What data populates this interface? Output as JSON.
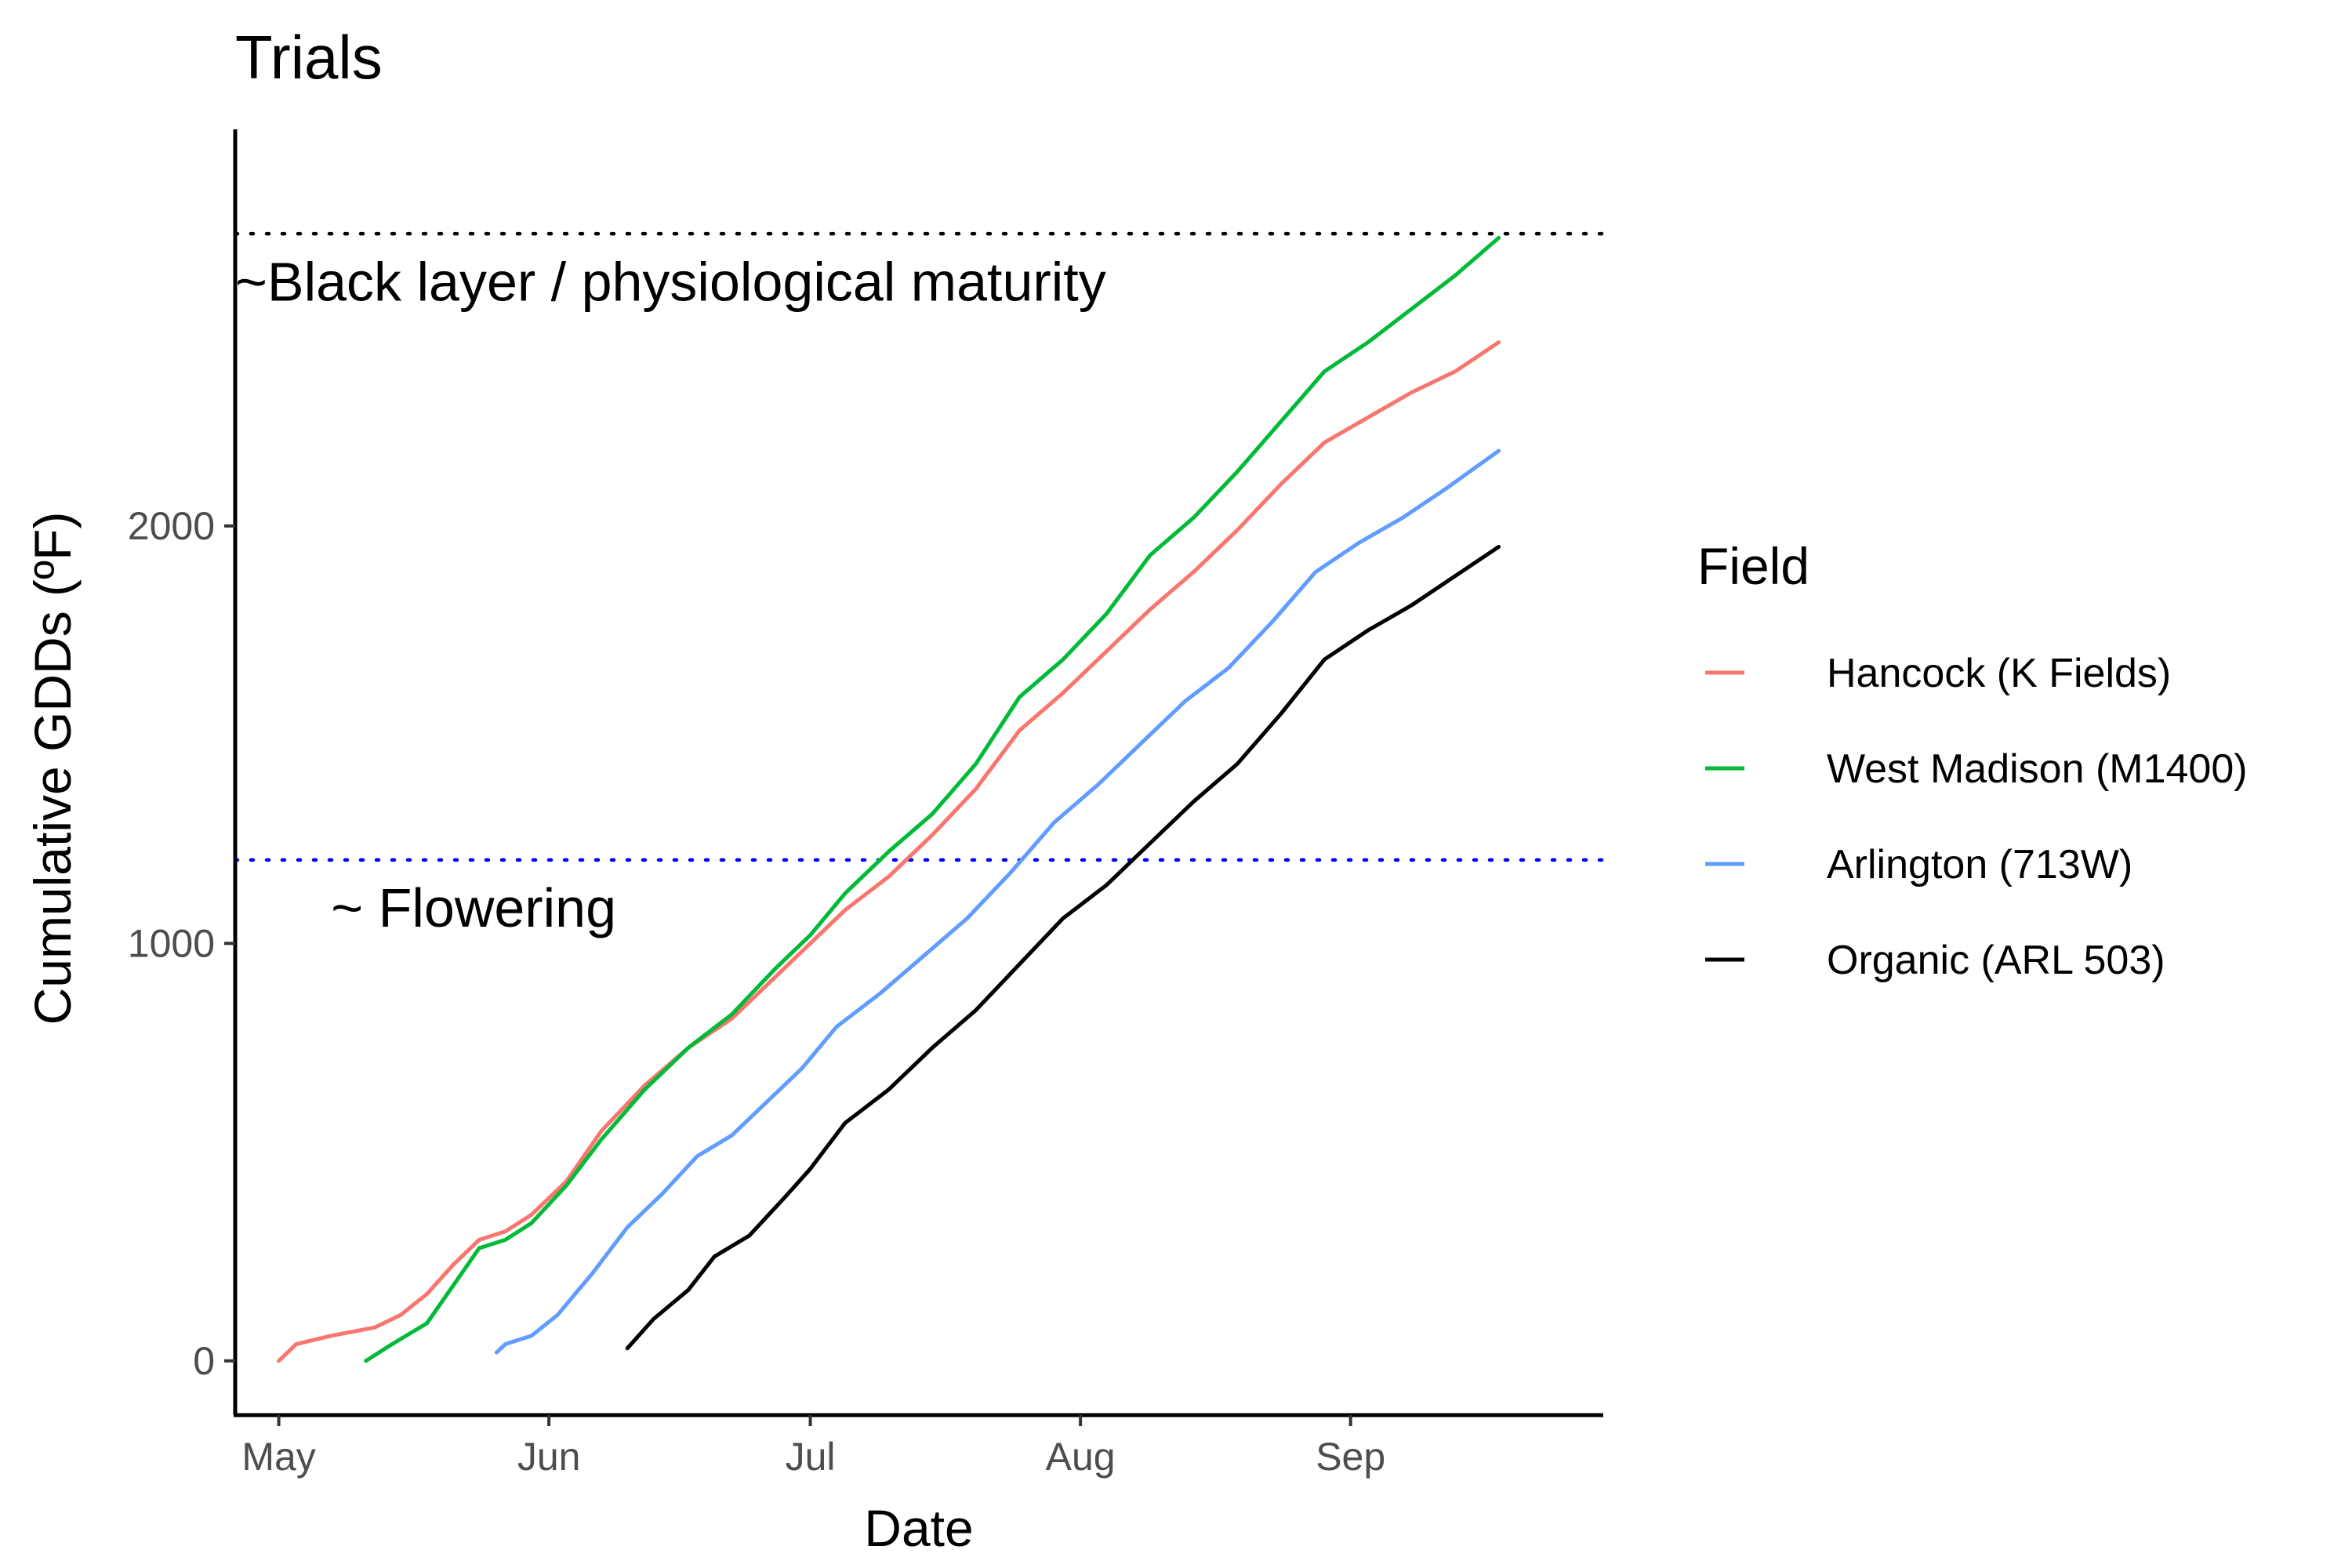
{
  "chart_data": {
    "type": "line",
    "title": "Trials",
    "xlabel": "Date",
    "ylabel": "Cumulative GDDs (ºF)",
    "year": 2023,
    "xlim": [
      "2023-04-26",
      "2023-09-30"
    ],
    "ylim": [
      -130,
      2950
    ],
    "x_ticks": [
      {
        "date": "2023-05-01",
        "label": "May"
      },
      {
        "date": "2023-06-01",
        "label": "Jun"
      },
      {
        "date": "2023-07-01",
        "label": "Jul"
      },
      {
        "date": "2023-08-01",
        "label": "Aug"
      },
      {
        "date": "2023-09-01",
        "label": "Sep"
      }
    ],
    "y_ticks": [
      0,
      1000,
      2000
    ],
    "reference_lines": [
      {
        "y": 2700,
        "color": "#000000",
        "style": "dotted",
        "label": "~Black layer / physiological maturity",
        "label_at": {
          "date": "2023-04-26",
          "y": 2540
        }
      },
      {
        "y": 1200,
        "color": "#0000ff",
        "style": "dotted",
        "label": "~ Flowering",
        "label_at": {
          "date": "2023-05-07",
          "y": 1040
        }
      }
    ],
    "legend": {
      "title": "Field",
      "position": "right"
    },
    "series": [
      {
        "name": "Hancock (K Fields)",
        "color": "#F8766D",
        "points": [
          [
            "2023-05-01",
            0
          ],
          [
            "2023-05-03",
            40
          ],
          [
            "2023-05-07",
            60
          ],
          [
            "2023-05-12",
            80
          ],
          [
            "2023-05-15",
            110
          ],
          [
            "2023-05-18",
            160
          ],
          [
            "2023-05-21",
            230
          ],
          [
            "2023-05-24",
            290
          ],
          [
            "2023-05-27",
            310
          ],
          [
            "2023-05-30",
            350
          ],
          [
            "2023-06-03",
            430
          ],
          [
            "2023-06-07",
            550
          ],
          [
            "2023-06-12",
            660
          ],
          [
            "2023-06-17",
            750
          ],
          [
            "2023-06-22",
            820
          ],
          [
            "2023-06-27",
            920
          ],
          [
            "2023-07-01",
            1000
          ],
          [
            "2023-07-05",
            1080
          ],
          [
            "2023-07-10",
            1160
          ],
          [
            "2023-07-15",
            1260
          ],
          [
            "2023-07-20",
            1370
          ],
          [
            "2023-07-25",
            1510
          ],
          [
            "2023-07-30",
            1600
          ],
          [
            "2023-08-04",
            1700
          ],
          [
            "2023-08-09",
            1800
          ],
          [
            "2023-08-14",
            1890
          ],
          [
            "2023-08-19",
            1990
          ],
          [
            "2023-08-24",
            2100
          ],
          [
            "2023-08-29",
            2200
          ],
          [
            "2023-09-03",
            2260
          ],
          [
            "2023-09-08",
            2320
          ],
          [
            "2023-09-13",
            2370
          ],
          [
            "2023-09-18",
            2440
          ]
        ]
      },
      {
        "name": "West Madison (M1400)",
        "color": "#00BA38",
        "points": [
          [
            "2023-05-11",
            0
          ],
          [
            "2023-05-14",
            40
          ],
          [
            "2023-05-18",
            90
          ],
          [
            "2023-05-21",
            180
          ],
          [
            "2023-05-24",
            270
          ],
          [
            "2023-05-27",
            290
          ],
          [
            "2023-05-30",
            330
          ],
          [
            "2023-06-03",
            420
          ],
          [
            "2023-06-07",
            530
          ],
          [
            "2023-06-12",
            650
          ],
          [
            "2023-06-17",
            750
          ],
          [
            "2023-06-22",
            830
          ],
          [
            "2023-06-27",
            940
          ],
          [
            "2023-07-01",
            1020
          ],
          [
            "2023-07-05",
            1120
          ],
          [
            "2023-07-10",
            1220
          ],
          [
            "2023-07-15",
            1310
          ],
          [
            "2023-07-20",
            1430
          ],
          [
            "2023-07-25",
            1590
          ],
          [
            "2023-07-30",
            1680
          ],
          [
            "2023-08-04",
            1790
          ],
          [
            "2023-08-09",
            1930
          ],
          [
            "2023-08-14",
            2020
          ],
          [
            "2023-08-19",
            2130
          ],
          [
            "2023-08-24",
            2250
          ],
          [
            "2023-08-29",
            2370
          ],
          [
            "2023-09-03",
            2440
          ],
          [
            "2023-09-08",
            2520
          ],
          [
            "2023-09-13",
            2600
          ],
          [
            "2023-09-18",
            2690
          ]
        ]
      },
      {
        "name": "Arlington (713W)",
        "color": "#619CFF",
        "points": [
          [
            "2023-05-26",
            20
          ],
          [
            "2023-05-27",
            40
          ],
          [
            "2023-05-30",
            60
          ],
          [
            "2023-06-02",
            110
          ],
          [
            "2023-06-06",
            210
          ],
          [
            "2023-06-10",
            320
          ],
          [
            "2023-06-14",
            400
          ],
          [
            "2023-06-18",
            490
          ],
          [
            "2023-06-22",
            540
          ],
          [
            "2023-06-26",
            620
          ],
          [
            "2023-06-30",
            700
          ],
          [
            "2023-07-04",
            800
          ],
          [
            "2023-07-09",
            880
          ],
          [
            "2023-07-14",
            970
          ],
          [
            "2023-07-19",
            1060
          ],
          [
            "2023-07-24",
            1170
          ],
          [
            "2023-07-29",
            1290
          ],
          [
            "2023-08-03",
            1380
          ],
          [
            "2023-08-08",
            1480
          ],
          [
            "2023-08-13",
            1580
          ],
          [
            "2023-08-18",
            1660
          ],
          [
            "2023-08-23",
            1770
          ],
          [
            "2023-08-28",
            1890
          ],
          [
            "2023-09-02",
            1960
          ],
          [
            "2023-09-07",
            2020
          ],
          [
            "2023-09-12",
            2090
          ],
          [
            "2023-09-18",
            2180
          ]
        ]
      },
      {
        "name": "Organic (ARL 503)",
        "color": "#000000",
        "points": [
          [
            "2023-06-10",
            30
          ],
          [
            "2023-06-13",
            100
          ],
          [
            "2023-06-17",
            170
          ],
          [
            "2023-06-20",
            250
          ],
          [
            "2023-06-24",
            300
          ],
          [
            "2023-06-28",
            390
          ],
          [
            "2023-07-01",
            460
          ],
          [
            "2023-07-05",
            570
          ],
          [
            "2023-07-10",
            650
          ],
          [
            "2023-07-15",
            750
          ],
          [
            "2023-07-20",
            840
          ],
          [
            "2023-07-25",
            950
          ],
          [
            "2023-07-30",
            1060
          ],
          [
            "2023-08-04",
            1140
          ],
          [
            "2023-08-09",
            1240
          ],
          [
            "2023-08-14",
            1340
          ],
          [
            "2023-08-19",
            1430
          ],
          [
            "2023-08-24",
            1550
          ],
          [
            "2023-08-29",
            1680
          ],
          [
            "2023-09-03",
            1750
          ],
          [
            "2023-09-08",
            1810
          ],
          [
            "2023-09-13",
            1880
          ],
          [
            "2023-09-18",
            1950
          ]
        ]
      }
    ]
  }
}
